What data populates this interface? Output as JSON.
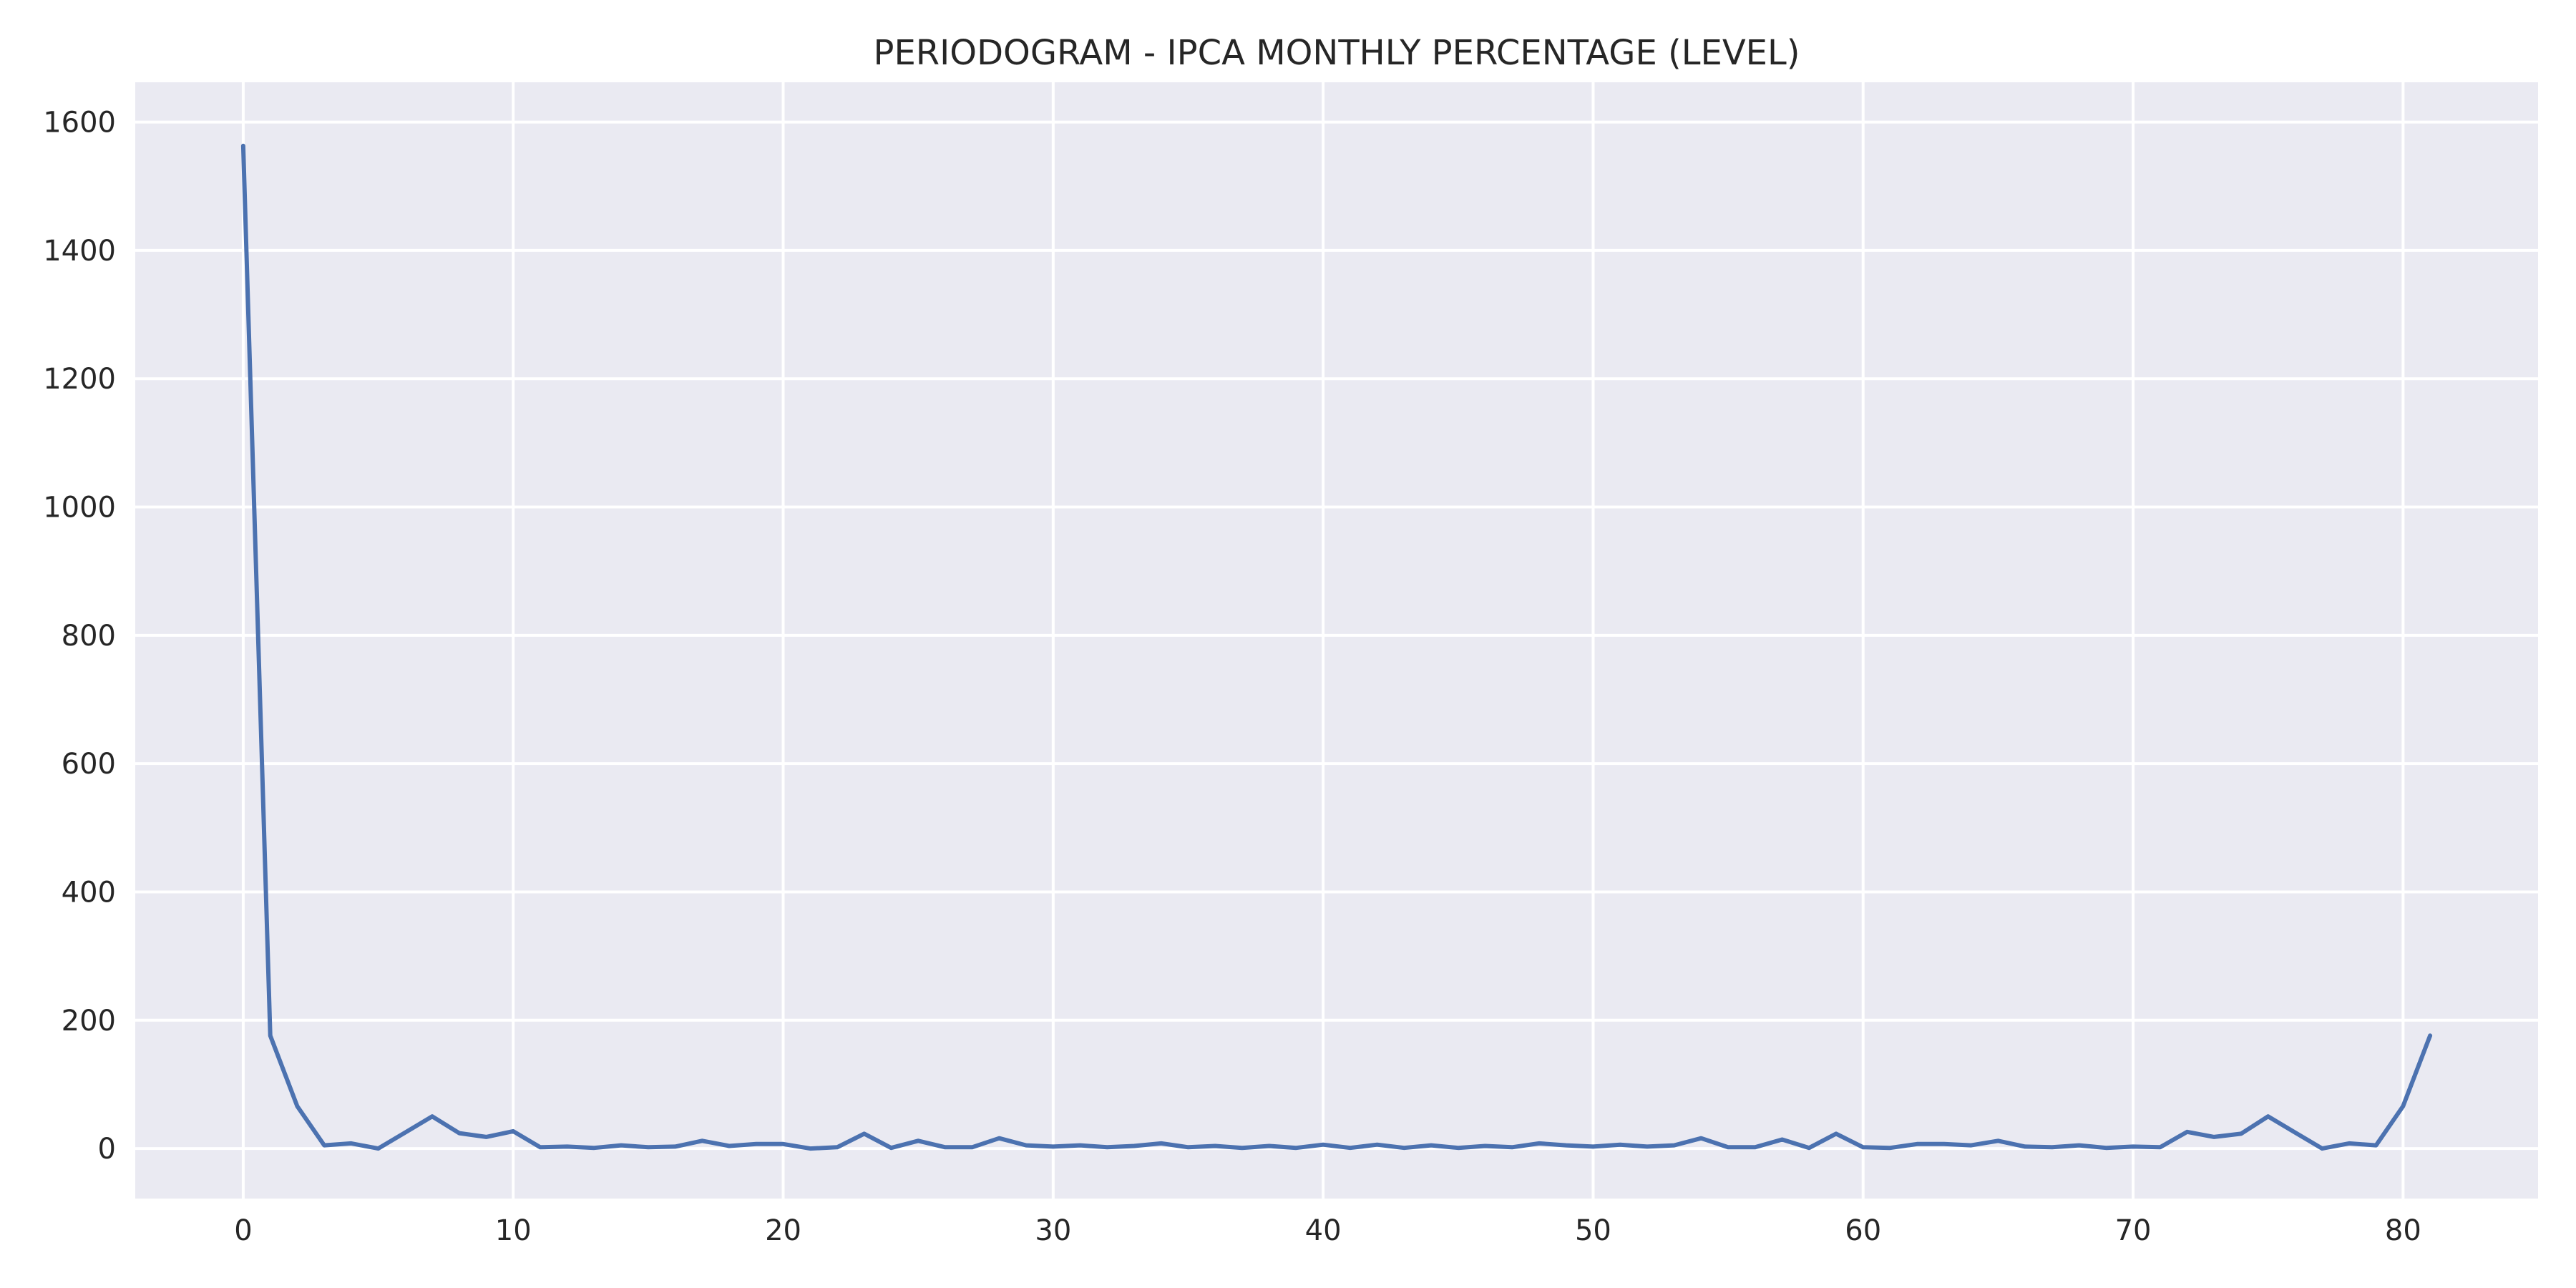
{
  "chart_data": {
    "type": "line",
    "title": "PERIODOGRAM - IPCA MONTHLY PERCENTAGE (LEVEL)",
    "xlabel": "",
    "ylabel": "",
    "xlim": [
      -4,
      85
    ],
    "ylim": [
      -78,
      1662
    ],
    "grid": true,
    "x_ticks": [
      0,
      10,
      20,
      30,
      40,
      50,
      60,
      70,
      80
    ],
    "y_ticks": [
      0,
      200,
      400,
      600,
      800,
      1000,
      1200,
      1400,
      1600
    ],
    "colors": {
      "plot_background": "#EAEAF2",
      "grid": "#FFFFFF",
      "series": "#4C72B0",
      "text": "#262626"
    },
    "series": [
      {
        "x": [
          0,
          1,
          2,
          3,
          4,
          5,
          6,
          7,
          8,
          9,
          10,
          11,
          12,
          13,
          14,
          15,
          16,
          17,
          18,
          19,
          20,
          21,
          22,
          23,
          24,
          25,
          26,
          27,
          28,
          29,
          30,
          31,
          32,
          33,
          34,
          35,
          36,
          37,
          38,
          39,
          40,
          41,
          42,
          43,
          44,
          45,
          46,
          47,
          48,
          49,
          50,
          51,
          52,
          53,
          54,
          55,
          56,
          57,
          58,
          59,
          60,
          61,
          62,
          63,
          64,
          65,
          66,
          67,
          68,
          69,
          70,
          71,
          72,
          73,
          74,
          75,
          76,
          77,
          78,
          79,
          80,
          81
        ],
        "values": [
          1563,
          176,
          66,
          5,
          8,
          0,
          25,
          50,
          24,
          18,
          27,
          2,
          3,
          1,
          5,
          2,
          3,
          12,
          4,
          7,
          7,
          0,
          2,
          23,
          1,
          12,
          2,
          2,
          16,
          5,
          3,
          5,
          2,
          4,
          8,
          2,
          4,
          1,
          4,
          1,
          6,
          1,
          6,
          1,
          5,
          1,
          4,
          2,
          8,
          5,
          3,
          6,
          3,
          5,
          16,
          2,
          2,
          14,
          1,
          23,
          2,
          1,
          7,
          7,
          5,
          12,
          3,
          2,
          5,
          1,
          3,
          2,
          26,
          18,
          23,
          50,
          25,
          0,
          8,
          5,
          66,
          176
        ]
      }
    ]
  }
}
